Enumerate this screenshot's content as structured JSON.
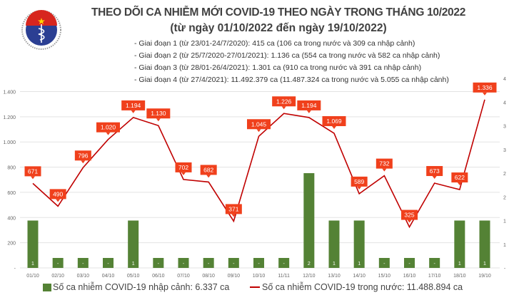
{
  "header": {
    "title": "THEO DÕI CA NHIỄM MỚI COVID-19 THEO NGÀY TRONG THÁNG 10/2022",
    "subtitle": "(từ ngày 01/10/2022 đến ngày 19/10/2022)",
    "phases": [
      "- Giai đoạn 1 (từ 23/01-24/7/2020): 415 ca (106 ca trong nước và 309 ca nhập cảnh)",
      "- Giai đoạn 2 (từ 25/7/2020-27/01/2021): 1.136 ca (554 ca trong nước và 582 ca nhập cảnh)",
      "- Giai đoạn 3 (từ 28/01-26/4/2021): 1.301 ca (910 ca trong nước và 391 ca nhập cảnh)",
      "- Giai đoạn 4 (từ 27/4/2021): 11.492.379 ca (11.487.324 ca trong nước và 5.055 ca nhập cảnh)"
    ],
    "logo_text": "BỘ Y TẾ - MINISTRY OF HEALTH"
  },
  "chart_data": {
    "type": "bar+line",
    "title": "THEO DÕI CA NHIỄM MỚI COVID-19 THEO NGÀY TRONG THÁNG 10/2022",
    "categories": [
      "01/10",
      "02/10",
      "03/10",
      "04/10",
      "05/10",
      "06/10",
      "07/10",
      "08/10",
      "09/10",
      "10/10",
      "11/11",
      "12/10",
      "13/10",
      "14/10",
      "15/10",
      "16/10",
      "17/10",
      "18/10",
      "19/10"
    ],
    "series": [
      {
        "name": "Số ca nhiễm COVID-19 nhập cảnh: 6.337 ca",
        "type": "bar",
        "axis": "right",
        "color": "#548235",
        "values": [
          1,
          0,
          0,
          0,
          1,
          0,
          0,
          0,
          0,
          0,
          0,
          2,
          1,
          1,
          0,
          0,
          0,
          1,
          1
        ],
        "labels": [
          "1",
          "-",
          "-",
          "-",
          "1",
          "-",
          "-",
          "-",
          "-",
          "-",
          "-",
          "2",
          "1",
          "1",
          "-",
          "-",
          "-",
          "1",
          "1"
        ]
      },
      {
        "name": "Số ca nhiễm COVID-19 trong nước: 11.488.894 ca",
        "type": "line",
        "axis": "left",
        "color": "#c00000",
        "label_color": "#f0401c",
        "values": [
          671,
          490,
          796,
          1020,
          1194,
          1130,
          702,
          682,
          371,
          1045,
          1226,
          1194,
          1069,
          589,
          732,
          325,
          673,
          622,
          1336
        ],
        "labels": [
          "671",
          "490",
          "796",
          "1.020",
          "1.194",
          "1.130",
          "702",
          "682",
          "371",
          "1.045",
          "1.226",
          "1.194",
          "1.069",
          "589",
          "732",
          "325",
          "673",
          "622",
          "1.336"
        ]
      }
    ],
    "left_axis": {
      "ylim": [
        0,
        1400
      ],
      "ticks": [
        "-",
        "200",
        "400",
        "600",
        "800",
        "1.000",
        "1.200",
        "1.400"
      ]
    },
    "right_axis": {
      "ylim": [
        0,
        4
      ],
      "ticks": [
        "-",
        "1",
        "1",
        "2",
        "2",
        "3",
        "3",
        "4",
        "4"
      ]
    },
    "grid": true,
    "legend": "bottom"
  }
}
